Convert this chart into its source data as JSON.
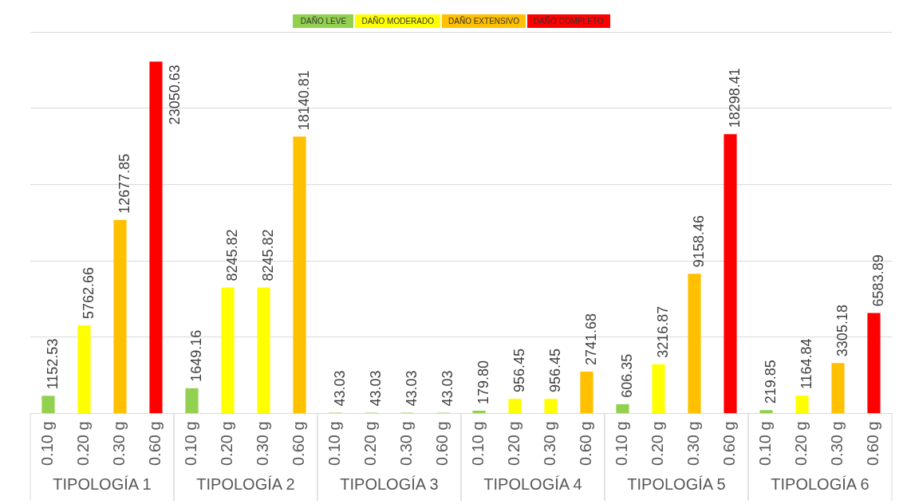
{
  "chart_data": {
    "type": "bar",
    "stacked": true,
    "categories": [
      "0.10 g",
      "0.20 g",
      "0.30 g",
      "0.60 g",
      "0.10 g",
      "0.20 g",
      "0.30 g",
      "0.60 g",
      "0.10 g",
      "0.20 g",
      "0.30 g",
      "0.60 g",
      "0.10 g",
      "0.20 g",
      "0.30 g",
      "0.60 g",
      "0.10 g",
      "0.20 g",
      "0.30 g",
      "0.60 g",
      "0.10 g",
      "0.20 g",
      "0.30 g",
      "0.60 g"
    ],
    "annotations": [
      "TIPOLOGÍA 1",
      "TIPOLOGÍA 2",
      "TIPOLOGÍA 3",
      "TIPOLOGÍA 4",
      "TIPOLOGÍA 5",
      "TIPOLOGÍA 6"
    ],
    "series": [
      {
        "name": "DAÑO LEVE",
        "color": "#92d050",
        "values": [
          1152.53,
          null,
          null,
          null,
          1649.16,
          null,
          null,
          null,
          43.03,
          43.03,
          43.03,
          43.03,
          179.8,
          null,
          null,
          null,
          606.35,
          null,
          null,
          null,
          219.85,
          null,
          null,
          null
        ],
        "value_labels": [
          "1152.53",
          null,
          null,
          null,
          "1649.16",
          null,
          null,
          null,
          "43.03",
          "43.03",
          "43.03",
          "43.03",
          "179.80",
          null,
          null,
          null,
          "606.35",
          null,
          null,
          null,
          "219.85",
          null,
          null,
          null
        ]
      },
      {
        "name": "DAÑO MODERADO",
        "color": "#ffff00",
        "values": [
          null,
          5762.66,
          null,
          null,
          null,
          8245.82,
          8245.82,
          null,
          null,
          null,
          null,
          null,
          null,
          956.45,
          956.45,
          null,
          null,
          3216.87,
          null,
          null,
          null,
          1164.84,
          null,
          null
        ],
        "value_labels": [
          null,
          "5762.66",
          null,
          null,
          null,
          "8245.82",
          "8245.82",
          null,
          null,
          null,
          null,
          null,
          null,
          "956.45",
          "956.45",
          null,
          null,
          "3216.87",
          null,
          null,
          null,
          "1164.84",
          null,
          null
        ]
      },
      {
        "name": "DAÑO EXTENSIVO",
        "color": "#ffc000",
        "values": [
          null,
          null,
          12677.85,
          null,
          null,
          null,
          null,
          18140.81,
          null,
          null,
          null,
          null,
          null,
          null,
          null,
          2741.68,
          null,
          null,
          9158.46,
          null,
          null,
          null,
          3305.18,
          null
        ],
        "value_labels": [
          null,
          null,
          "12677.85",
          null,
          null,
          null,
          null,
          "18140.81",
          null,
          null,
          null,
          null,
          null,
          null,
          null,
          "2741.68",
          null,
          null,
          "9158.46",
          null,
          null,
          null,
          "3305.18",
          null
        ]
      },
      {
        "name": "DAÑO COMPLETO",
        "color": "#ff0000",
        "values": [
          null,
          null,
          null,
          23050.63,
          null,
          null,
          null,
          null,
          null,
          null,
          null,
          null,
          null,
          null,
          null,
          null,
          null,
          null,
          null,
          18298.41,
          null,
          null,
          null,
          6583.89
        ],
        "value_labels": [
          null,
          null,
          null,
          "23050.63",
          null,
          null,
          null,
          null,
          null,
          null,
          null,
          null,
          null,
          null,
          null,
          null,
          null,
          null,
          null,
          "18298.41",
          null,
          null,
          null,
          "6583.89"
        ]
      }
    ],
    "ylim": [
      0,
      25000
    ],
    "yticks": [
      {
        "value": 0,
        "label": null
      },
      {
        "value": 5000,
        "label": null
      },
      {
        "value": 10000,
        "label": null
      },
      {
        "value": 15000,
        "label": null
      },
      {
        "value": 20000,
        "label": null
      },
      {
        "value": 25000,
        "label": null
      }
    ],
    "grid": "y",
    "tick_labels": "x",
    "legend": "top"
  }
}
